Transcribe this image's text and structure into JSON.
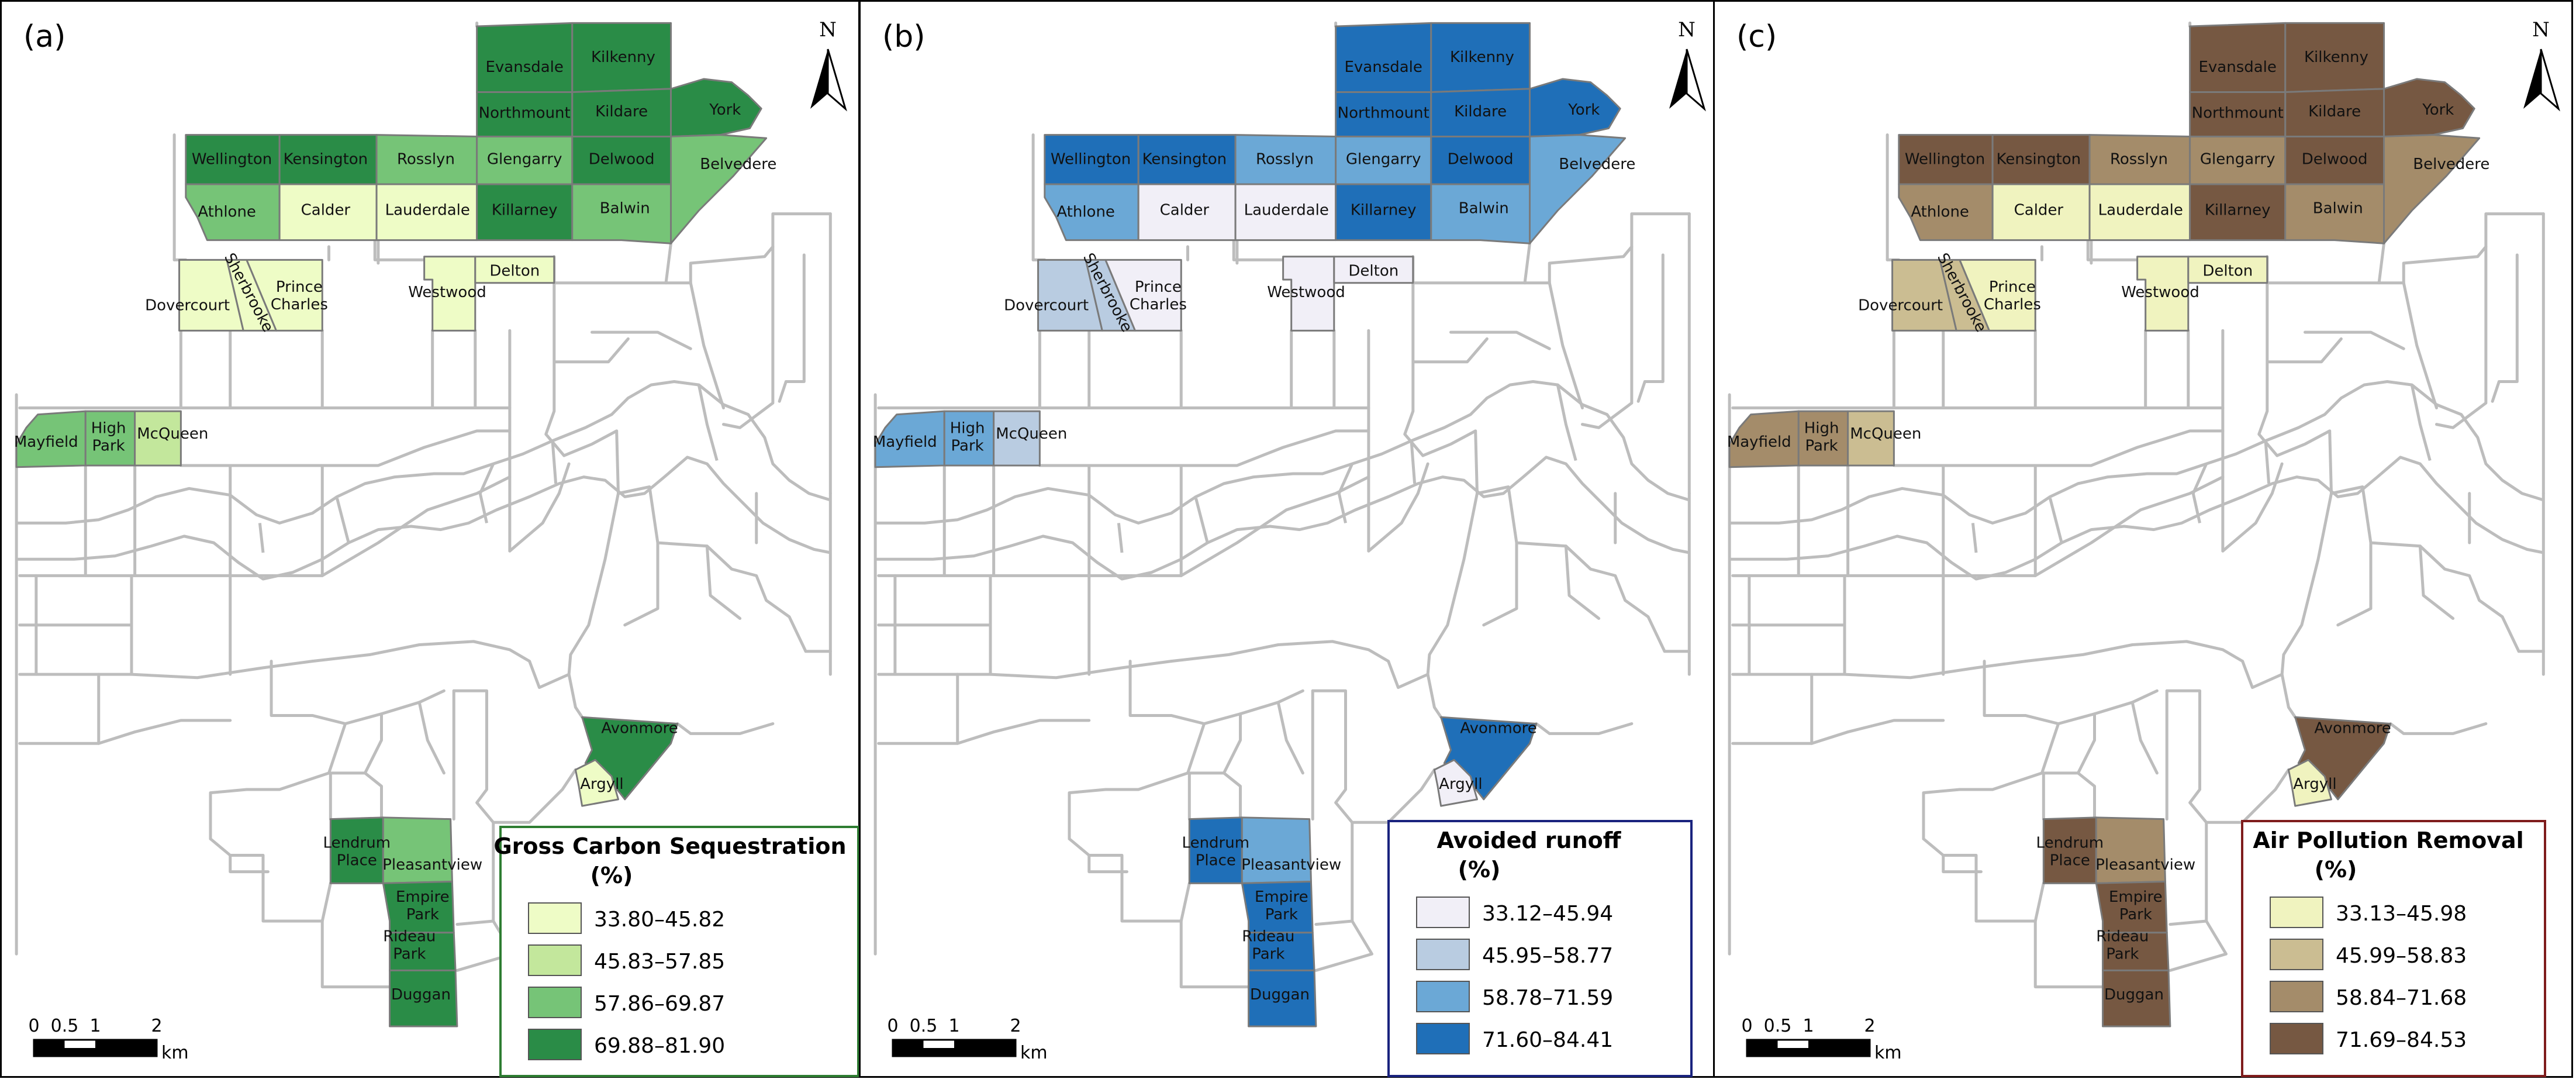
{
  "panels": [
    {
      "letter": "(a)",
      "legend": {
        "title": "Gross Carbon Sequestration",
        "unit": "(%)",
        "classes": [
          {
            "label": "33.80–45.82",
            "color": "#eefcc6"
          },
          {
            "label": "45.83–57.85",
            "color": "#c3e79c"
          },
          {
            "label": "57.86–69.87",
            "color": "#76c477"
          },
          {
            "label": "69.88–81.90",
            "color": "#2a8c47"
          }
        ],
        "frame_color": "#2e7d32"
      },
      "neighbourhood_class": {
        "Evansdale": 4,
        "Kilkenny": 4,
        "Northmount": 4,
        "Kildare": 4,
        "York": 4,
        "Wellington": 4,
        "Kensington": 4,
        "Rosslyn": 3,
        "Glengarry": 3,
        "Delwood": 4,
        "Belvedere": 3,
        "Athlone": 3,
        "Calder": 1,
        "Lauderdale": 1,
        "Killarney": 4,
        "Balwin": 3,
        "Dovercourt": 1,
        "Sherbrooke": 1,
        "Prince Charles": 1,
        "Westwood": 1,
        "Delton": 1,
        "Mayfield": 3,
        "High Park": 3,
        "McQueen": 2,
        "Avonmore": 4,
        "Argyll": 1,
        "Lendrum Place": 4,
        "Pleasantview": 3,
        "Empire Park": 4,
        "Rideau Park": 4,
        "Duggan": 4
      }
    },
    {
      "letter": "(b)",
      "legend": {
        "title": "Avoided runoff",
        "unit": "(%)",
        "classes": [
          {
            "label": "33.12–45.94",
            "color": "#f1eff7"
          },
          {
            "label": "45.95–58.77",
            "color": "#b9cce1"
          },
          {
            "label": "58.78–71.59",
            "color": "#6ba8d6"
          },
          {
            "label": "71.60–84.41",
            "color": "#1f6fb8"
          }
        ],
        "frame_color": "#1a237e"
      },
      "neighbourhood_class": {
        "Evansdale": 4,
        "Kilkenny": 4,
        "Northmount": 4,
        "Kildare": 4,
        "York": 4,
        "Wellington": 4,
        "Kensington": 4,
        "Rosslyn": 3,
        "Glengarry": 3,
        "Delwood": 4,
        "Belvedere": 3,
        "Athlone": 3,
        "Calder": 1,
        "Lauderdale": 1,
        "Killarney": 4,
        "Balwin": 3,
        "Dovercourt": 2,
        "Sherbrooke": 2,
        "Prince Charles": 1,
        "Westwood": 1,
        "Delton": 1,
        "Mayfield": 3,
        "High Park": 3,
        "McQueen": 2,
        "Avonmore": 4,
        "Argyll": 1,
        "Lendrum Place": 4,
        "Pleasantview": 3,
        "Empire Park": 4,
        "Rideau Park": 4,
        "Duggan": 4
      }
    },
    {
      "letter": "(c)",
      "legend": {
        "title": "Air Pollution Removal",
        "unit": "(%)",
        "classes": [
          {
            "label": "33.13–45.98",
            "color": "#f0f3bf"
          },
          {
            "label": "45.99–58.83",
            "color": "#cbbd92"
          },
          {
            "label": "58.84–71.68",
            "color": "#a48c6a"
          },
          {
            "label": "71.69–84.53",
            "color": "#765842"
          }
        ],
        "frame_color": "#7f1d1d"
      },
      "neighbourhood_class": {
        "Evansdale": 4,
        "Kilkenny": 4,
        "Northmount": 4,
        "Kildare": 4,
        "York": 4,
        "Wellington": 4,
        "Kensington": 4,
        "Rosslyn": 3,
        "Glengarry": 3,
        "Delwood": 4,
        "Belvedere": 3,
        "Athlone": 3,
        "Calder": 1,
        "Lauderdale": 1,
        "Killarney": 4,
        "Balwin": 3,
        "Dovercourt": 2,
        "Sherbrooke": 2,
        "Prince Charles": 1,
        "Westwood": 1,
        "Delton": 1,
        "Mayfield": 3,
        "High Park": 3,
        "McQueen": 2,
        "Avonmore": 4,
        "Argyll": 1,
        "Lendrum Place": 4,
        "Pleasantview": 3,
        "Empire Park": 4,
        "Rideau Park": 4,
        "Duggan": 4
      }
    }
  ],
  "neighbourhood_labels": {
    "Evansdale": "Evansdale",
    "Kilkenny": "Kilkenny",
    "Northmount": "Northmount",
    "Kildare": "Kildare",
    "York": "York",
    "Wellington": "Wellington",
    "Kensington": "Kensington",
    "Rosslyn": "Rosslyn",
    "Glengarry": "Glengarry",
    "Delwood": "Delwood",
    "Belvedere": "Belvedere",
    "Athlone": "Athlone",
    "Calder": "Calder",
    "Lauderdale": "Lauderdale",
    "Killarney": "Killarney",
    "Balwin": "Balwin",
    "Dovercourt": "Dovercourt",
    "Sherbrooke": "Sherbrooke",
    "Prince Charles": [
      "Prince",
      "Charles"
    ],
    "Westwood": "Westwood",
    "Delton": "Delton",
    "Mayfield": "Mayfield",
    "High Park": [
      "High",
      "Park"
    ],
    "McQueen": "McQueen",
    "Avonmore": "Avonmore",
    "Argyll": "Argyll",
    "Lendrum Place": [
      "Lendrum",
      "Place"
    ],
    "Pleasantview": "Pleasantview",
    "Empire Park": [
      "Empire",
      "Park"
    ],
    "Rideau Park": [
      "Rideau",
      "Park"
    ],
    "Duggan": "Duggan"
  },
  "north_arrow": {
    "letter": "N"
  },
  "scale_bar": {
    "ticks": [
      "0",
      "0.5",
      "1",
      "2"
    ],
    "unit": "km"
  }
}
